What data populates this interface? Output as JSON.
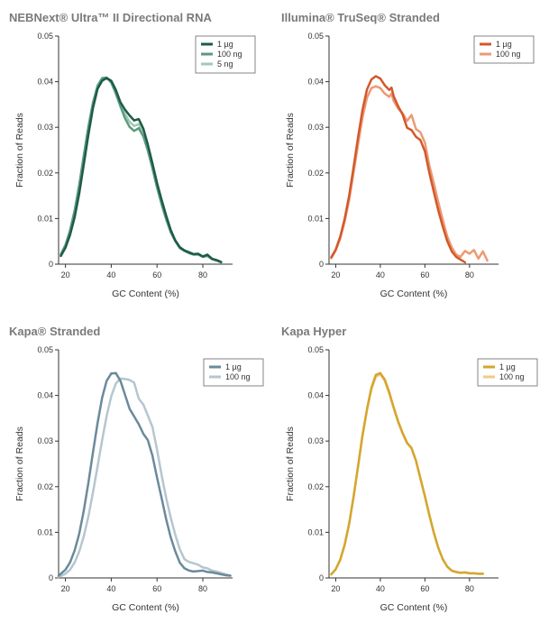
{
  "chart_data": [
    {
      "type": "line",
      "title": "NEBNext® Ultra™ II Directional RNA",
      "xlabel": "GC Content (%)",
      "ylabel": "Fraction of Reads",
      "xlim": [
        17,
        93
      ],
      "ylim": [
        0,
        0.05
      ],
      "xticks": [
        "20",
        "40",
        "60",
        "80"
      ],
      "yticks": [
        "0",
        "0.01",
        "0.02",
        "0.03",
        "0.04",
        "0.05"
      ],
      "legend_position": "top-right",
      "series": [
        {
          "name": "1 µg",
          "color": "#1d5c46",
          "x": [
            18,
            20,
            22,
            24,
            26,
            28,
            30,
            32,
            34,
            36,
            38,
            40,
            42,
            44,
            46,
            48,
            50,
            52,
            54,
            56,
            58,
            60,
            62,
            64,
            66,
            68,
            70,
            72,
            74,
            76,
            78,
            80,
            82,
            84,
            86,
            88
          ],
          "y": [
            0.0018,
            0.0036,
            0.0064,
            0.0103,
            0.0155,
            0.0218,
            0.0283,
            0.0342,
            0.0384,
            0.0402,
            0.0408,
            0.0402,
            0.0382,
            0.0355,
            0.0339,
            0.0326,
            0.0315,
            0.0318,
            0.0297,
            0.0262,
            0.0221,
            0.0178,
            0.0141,
            0.0106,
            0.0075,
            0.0052,
            0.0037,
            0.003,
            0.0026,
            0.0022,
            0.0023,
            0.0017,
            0.0021,
            0.0012,
            0.0009,
            0.0005
          ]
        },
        {
          "name": "100 ng",
          "color": "#5c9a80",
          "x": [
            18,
            20,
            22,
            24,
            26,
            28,
            30,
            32,
            34,
            36,
            38,
            40,
            42,
            44,
            46,
            48,
            50,
            52,
            54,
            56,
            58,
            60,
            62,
            64,
            66,
            68,
            70,
            72,
            74,
            76,
            78,
            80,
            82,
            84,
            86,
            88
          ],
          "y": [
            0.0022,
            0.0042,
            0.0074,
            0.0118,
            0.0174,
            0.0238,
            0.0301,
            0.0354,
            0.0391,
            0.0408,
            0.0409,
            0.0398,
            0.0374,
            0.0346,
            0.032,
            0.0301,
            0.0292,
            0.0298,
            0.028,
            0.0249,
            0.021,
            0.0168,
            0.0131,
            0.0098,
            0.007,
            0.005,
            0.0035,
            0.0029,
            0.0024,
            0.0021,
            0.0021,
            0.0016,
            0.0018,
            0.0011,
            0.0008,
            0.0004
          ]
        },
        {
          "name": "5 ng",
          "color": "#a3c8b6",
          "x": [
            18,
            20,
            22,
            24,
            26,
            28,
            30,
            32,
            34,
            36,
            38,
            40,
            42,
            44,
            46,
            48,
            50,
            52,
            54,
            56,
            58,
            60,
            62,
            64,
            66,
            68,
            70,
            72,
            74,
            76,
            78,
            80,
            82,
            84,
            86,
            88
          ],
          "y": [
            0.002,
            0.0039,
            0.0069,
            0.0111,
            0.0165,
            0.0228,
            0.0292,
            0.0348,
            0.0387,
            0.0405,
            0.0408,
            0.04,
            0.0378,
            0.035,
            0.033,
            0.0312,
            0.0303,
            0.0307,
            0.0289,
            0.0255,
            0.0215,
            0.0173,
            0.0136,
            0.0102,
            0.0072,
            0.0051,
            0.0036,
            0.0029,
            0.0025,
            0.0021,
            0.0022,
            0.0016,
            0.0019,
            0.0011,
            0.0008,
            0.0004
          ]
        }
      ]
    },
    {
      "type": "line",
      "title": "Illumina® TruSeq® Stranded",
      "xlabel": "GC Content (%)",
      "ylabel": "Fraction of Reads",
      "xlim": [
        17,
        93
      ],
      "ylim": [
        0,
        0.05
      ],
      "xticks": [
        "20",
        "40",
        "60",
        "80"
      ],
      "yticks": [
        "0",
        "0.01",
        "0.02",
        "0.03",
        "0.04",
        "0.05"
      ],
      "legend_position": "top-right",
      "series": [
        {
          "name": "1 µg",
          "color": "#d2592a",
          "x": [
            18,
            20,
            22,
            24,
            26,
            28,
            30,
            32,
            34,
            36,
            38,
            40,
            42,
            44,
            45,
            46,
            48,
            50,
            52,
            54,
            56,
            58,
            60,
            62,
            64,
            66,
            68,
            70,
            72,
            74,
            76,
            78
          ],
          "y": [
            0.0015,
            0.0032,
            0.006,
            0.0099,
            0.015,
            0.0212,
            0.0278,
            0.0338,
            0.0383,
            0.0405,
            0.0412,
            0.0407,
            0.0392,
            0.0382,
            0.0387,
            0.0368,
            0.0346,
            0.0328,
            0.0299,
            0.0294,
            0.0279,
            0.0272,
            0.0247,
            0.02,
            0.0158,
            0.0118,
            0.0082,
            0.0051,
            0.0028,
            0.0016,
            0.001,
            0.0004
          ]
        },
        {
          "name": "100 ng",
          "color": "#ec9a76",
          "x": [
            18,
            20,
            22,
            24,
            26,
            28,
            30,
            32,
            34,
            36,
            38,
            40,
            42,
            44,
            45,
            46,
            48,
            50,
            52,
            54,
            56,
            58,
            60,
            62,
            64,
            66,
            68,
            70,
            72,
            74,
            76,
            78,
            80,
            82,
            84,
            86,
            88
          ],
          "y": [
            0.0013,
            0.003,
            0.0056,
            0.0093,
            0.0141,
            0.02,
            0.0263,
            0.0321,
            0.0365,
            0.0386,
            0.039,
            0.0386,
            0.0374,
            0.0367,
            0.0374,
            0.0358,
            0.0341,
            0.0331,
            0.0314,
            0.0327,
            0.0296,
            0.0289,
            0.0266,
            0.0216,
            0.0177,
            0.0136,
            0.0097,
            0.0061,
            0.0037,
            0.0021,
            0.0016,
            0.0029,
            0.0023,
            0.0031,
            0.0012,
            0.0028,
            0.0008
          ]
        }
      ]
    },
    {
      "type": "line",
      "title": "Kapa® Stranded",
      "xlabel": "GC Content (%)",
      "ylabel": "Fraction of Reads",
      "xlim": [
        17,
        93
      ],
      "ylim": [
        0,
        0.05
      ],
      "xticks": [
        "20",
        "40",
        "60",
        "80"
      ],
      "yticks": [
        "0",
        "0.01",
        "0.02",
        "0.03",
        "0.04",
        "0.05"
      ],
      "legend_position": "top-right",
      "series": [
        {
          "name": "1 µg",
          "color": "#6b8a9b",
          "x": [
            17,
            20,
            22,
            24,
            26,
            28,
            30,
            32,
            34,
            36,
            38,
            40,
            42,
            44,
            46,
            48,
            50,
            52,
            54,
            56,
            58,
            60,
            62,
            64,
            66,
            68,
            70,
            72,
            74,
            76,
            78,
            80,
            82,
            84,
            86,
            88,
            90,
            92
          ],
          "y": [
            0.0005,
            0.0018,
            0.0034,
            0.006,
            0.0097,
            0.0147,
            0.0208,
            0.0275,
            0.0339,
            0.0395,
            0.0432,
            0.0448,
            0.0449,
            0.0432,
            0.0402,
            0.0371,
            0.0354,
            0.0337,
            0.0316,
            0.0302,
            0.0268,
            0.022,
            0.0175,
            0.0128,
            0.0089,
            0.0058,
            0.0033,
            0.0021,
            0.0016,
            0.0014,
            0.0015,
            0.0016,
            0.0013,
            0.0012,
            0.001,
            0.0008,
            0.0006,
            0.0005
          ]
        },
        {
          "name": "100 ng",
          "color": "#b5c6cf",
          "x": [
            17,
            20,
            22,
            24,
            26,
            28,
            30,
            32,
            34,
            36,
            38,
            40,
            42,
            44,
            46,
            48,
            50,
            52,
            54,
            56,
            58,
            60,
            62,
            64,
            66,
            68,
            70,
            72,
            74,
            76,
            78,
            80,
            82,
            84,
            86,
            88,
            90,
            92
          ],
          "y": [
            0.0002,
            0.0009,
            0.0018,
            0.0034,
            0.0058,
            0.0091,
            0.0134,
            0.0187,
            0.0244,
            0.0302,
            0.0355,
            0.0398,
            0.0426,
            0.0437,
            0.0436,
            0.0434,
            0.0428,
            0.0393,
            0.038,
            0.0356,
            0.0331,
            0.0281,
            0.0225,
            0.0175,
            0.0132,
            0.0094,
            0.0062,
            0.0041,
            0.0035,
            0.0032,
            0.0029,
            0.0023,
            0.0021,
            0.0016,
            0.0014,
            0.0011,
            0.0008,
            0.0005
          ]
        }
      ]
    },
    {
      "type": "line",
      "title": "Kapa Hyper",
      "xlabel": "GC Content (%)",
      "ylabel": "Fraction of Reads",
      "xlim": [
        17,
        93
      ],
      "ylim": [
        0,
        0.05
      ],
      "xticks": [
        "20",
        "40",
        "60",
        "80"
      ],
      "yticks": [
        "0",
        "0.01",
        "0.02",
        "0.03",
        "0.04",
        "0.05"
      ],
      "legend_position": "top-right",
      "series": [
        {
          "name": "1 µg",
          "color": "#d4a62e",
          "x": [
            18,
            20,
            22,
            24,
            26,
            28,
            30,
            32,
            34,
            36,
            38,
            40,
            42,
            44,
            46,
            48,
            50,
            52,
            54,
            56,
            58,
            60,
            62,
            64,
            66,
            68,
            70,
            72,
            74,
            76,
            78,
            80,
            82,
            84,
            86
          ],
          "y": [
            0.0008,
            0.0019,
            0.004,
            0.0073,
            0.0119,
            0.0178,
            0.0245,
            0.0313,
            0.037,
            0.0417,
            0.0445,
            0.0449,
            0.0435,
            0.0407,
            0.0374,
            0.0343,
            0.0318,
            0.0296,
            0.0285,
            0.0257,
            0.0218,
            0.0179,
            0.0138,
            0.0099,
            0.0066,
            0.0041,
            0.0025,
            0.0016,
            0.0013,
            0.0011,
            0.0012,
            0.001,
            0.001,
            0.0009,
            0.0009
          ]
        },
        {
          "name": "100 ng",
          "color": "#f3c989",
          "x": [
            18,
            20,
            22,
            24,
            26,
            28,
            30,
            32,
            34,
            36,
            38,
            40,
            42,
            44,
            46,
            48,
            50,
            52,
            54,
            56,
            58,
            60,
            62,
            64,
            66,
            68,
            70,
            72,
            74,
            76,
            78,
            80,
            82,
            84,
            86
          ],
          "y": [
            0.0008,
            0.0019,
            0.0039,
            0.0071,
            0.0117,
            0.0176,
            0.0243,
            0.031,
            0.0367,
            0.0413,
            0.0441,
            0.0446,
            0.0432,
            0.0404,
            0.0372,
            0.0341,
            0.0316,
            0.0295,
            0.0284,
            0.0256,
            0.0217,
            0.0178,
            0.0137,
            0.0098,
            0.0066,
            0.0041,
            0.0025,
            0.0016,
            0.0013,
            0.0011,
            0.0012,
            0.001,
            0.001,
            0.0009,
            0.0009
          ]
        }
      ]
    }
  ]
}
